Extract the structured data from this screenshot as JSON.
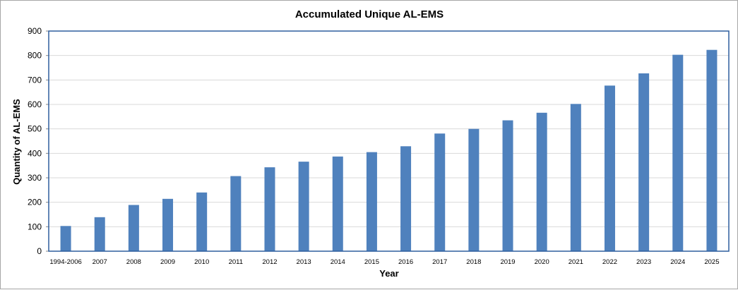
{
  "chart_data": {
    "type": "bar",
    "title": "Accumulated Unique AL-EMS",
    "xlabel": "Year",
    "ylabel": "Quantity of AL-EMS",
    "categories": [
      "1994-2006",
      "2007",
      "2008",
      "2009",
      "2010",
      "2011",
      "2012",
      "2013",
      "2014",
      "2015",
      "2016",
      "2017",
      "2018",
      "2019",
      "2020",
      "2021",
      "2022",
      "2023",
      "2024",
      "2025"
    ],
    "series": [
      {
        "name": "Accumulated Unique AL-EMS",
        "values": [
          103,
          139,
          189,
          214,
          240,
          307,
          343,
          366,
          387,
          405,
          429,
          481,
          500,
          535,
          566,
          602,
          677,
          727,
          803,
          823
        ]
      }
    ],
    "ylim": [
      0,
      900
    ],
    "yticks": [
      0,
      100,
      200,
      300,
      400,
      500,
      600,
      700,
      800,
      900
    ],
    "grid": true,
    "legend": "none",
    "colors": {
      "bar": "#4f81bd",
      "grid": "#d9d9d9",
      "plot_border": "#2e5e9e",
      "axis": "#868686"
    }
  }
}
